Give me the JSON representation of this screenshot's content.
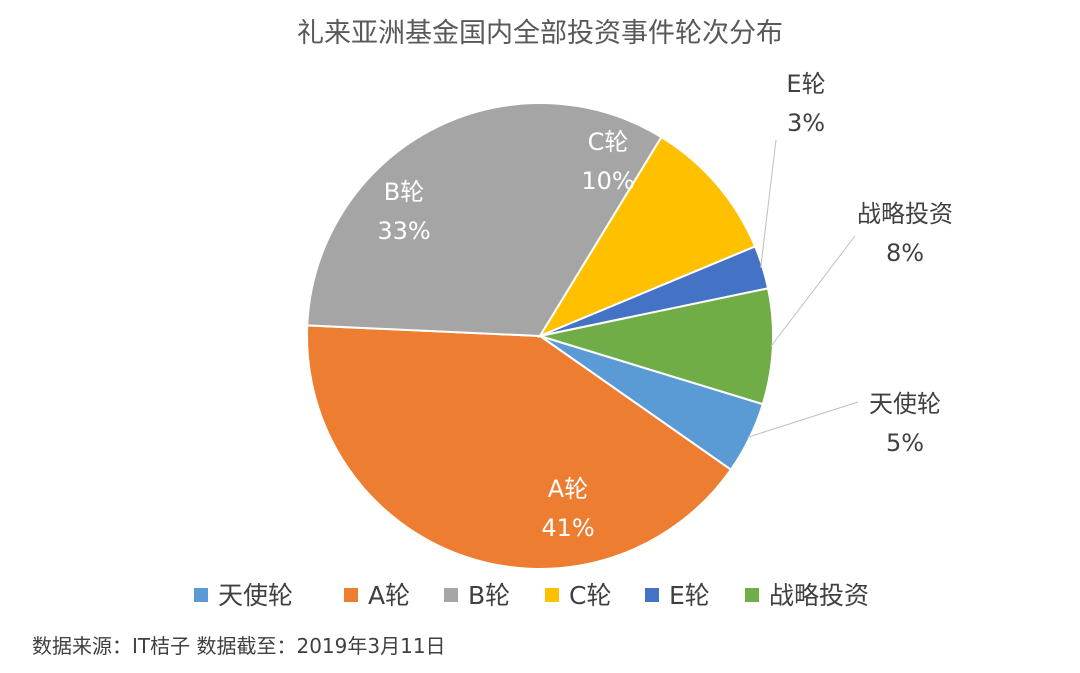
{
  "chart_data": {
    "type": "pie",
    "title": "礼来亚洲基金国内全部投资事件轮次分布",
    "slices": [
      {
        "name": "天使轮",
        "value": 5,
        "label": "5%",
        "color": "#5B9BD5"
      },
      {
        "name": "A轮",
        "value": 41,
        "label": "41%",
        "color": "#ED7D31"
      },
      {
        "name": "B轮",
        "value": 33,
        "label": "33%",
        "color": "#A5A5A5"
      },
      {
        "name": "C轮",
        "value": 10,
        "label": "10%",
        "color": "#FFC000"
      },
      {
        "name": "E轮",
        "value": 3,
        "label": "3%",
        "color": "#4472C4"
      },
      {
        "name": "战略投资",
        "value": 8,
        "label": "8%",
        "color": "#70AD47"
      }
    ],
    "legend_position": "bottom"
  },
  "footer": {
    "source": "数据来源：IT桔子  数据截至：2019年3月11日"
  }
}
